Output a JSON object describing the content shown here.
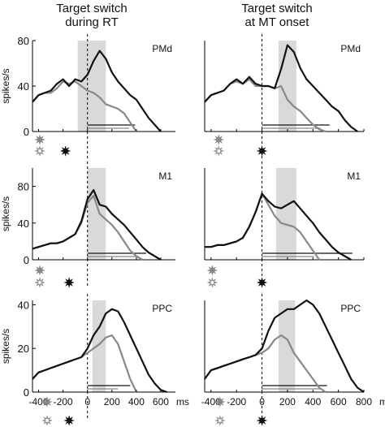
{
  "columns": [
    {
      "title_line1": "Target switch",
      "title_line2": "during RT"
    },
    {
      "title_line1": "Target switch",
      "title_line2": "at MT onset"
    }
  ],
  "colors": {
    "initial_target": "#888888",
    "switched_target": "#111111",
    "window": "#d9d9d9"
  },
  "chart_data": [
    {
      "type": "line",
      "region": "PMd",
      "condition": "during RT",
      "ylabel": "spikes/s",
      "ylim": [
        0,
        80
      ],
      "yticks": [
        0,
        40,
        80
      ],
      "xlim": [
        -450,
        850
      ],
      "window": [
        -80,
        150
      ],
      "series": [
        {
          "color": "#888888",
          "x": [
            -450,
            -400,
            -350,
            -300,
            -250,
            -200,
            -150,
            -100,
            -50,
            0,
            50,
            100,
            150,
            200,
            250,
            300,
            350,
            400
          ],
          "y": [
            26,
            32,
            34,
            34,
            38,
            44,
            42,
            44,
            40,
            36,
            34,
            30,
            24,
            22,
            20,
            16,
            8,
            0
          ]
        },
        {
          "color": "#111111",
          "x": [
            -450,
            -400,
            -350,
            -300,
            -250,
            -200,
            -150,
            -100,
            -50,
            0,
            50,
            100,
            150,
            200,
            250,
            300,
            350,
            400,
            450,
            500,
            550,
            600
          ],
          "y": [
            26,
            32,
            34,
            36,
            42,
            46,
            40,
            46,
            44,
            50,
            62,
            71,
            64,
            52,
            44,
            38,
            32,
            28,
            20,
            12,
            6,
            0
          ]
        }
      ],
      "bars": [
        {
          "x1": 0,
          "x2": 340,
          "color": "#888888"
        },
        {
          "x1": 0,
          "x2": 390,
          "color": "#111111"
        }
      ],
      "markers": [
        {
          "x": -390,
          "row": 0,
          "style": "solid-gray"
        },
        {
          "x": -390,
          "row": 1,
          "style": "open-gray"
        },
        {
          "x": -180,
          "row": 1,
          "style": "solid-black"
        }
      ]
    },
    {
      "type": "line",
      "region": "PMd",
      "condition": "at MT onset",
      "ylabel": "",
      "ylim": [
        0,
        80
      ],
      "yticks": [],
      "xlim": [
        -450,
        850
      ],
      "window": [
        130,
        270
      ],
      "series": [
        {
          "color": "#888888",
          "x": [
            -450,
            -400,
            -350,
            -300,
            -250,
            -200,
            -150,
            -100,
            -50,
            0,
            50,
            100,
            150,
            200,
            250,
            300,
            350,
            400,
            450,
            500
          ],
          "y": [
            26,
            32,
            34,
            36,
            42,
            44,
            42,
            46,
            40,
            40,
            40,
            38,
            40,
            28,
            22,
            18,
            12,
            6,
            2,
            0
          ]
        },
        {
          "color": "#111111",
          "x": [
            -450,
            -400,
            -350,
            -300,
            -250,
            -200,
            -150,
            -100,
            -50,
            0,
            50,
            100,
            150,
            200,
            250,
            300,
            350,
            400,
            450,
            500,
            550,
            600,
            650,
            700,
            750
          ],
          "y": [
            26,
            32,
            34,
            36,
            42,
            46,
            42,
            48,
            42,
            40,
            40,
            38,
            55,
            76,
            70,
            56,
            46,
            40,
            34,
            28,
            22,
            18,
            10,
            4,
            0
          ]
        }
      ],
      "bars": [
        {
          "x1": 0,
          "x2": 460,
          "color": "#888888"
        },
        {
          "x1": 0,
          "x2": 530,
          "color": "#111111"
        }
      ],
      "markers": [
        {
          "x": -340,
          "row": 0,
          "style": "solid-gray"
        },
        {
          "x": -340,
          "row": 1,
          "style": "open-gray"
        },
        {
          "x": 0,
          "row": 1,
          "style": "solid-black"
        }
      ]
    },
    {
      "type": "line",
      "region": "M1",
      "condition": "during RT",
      "ylabel": "spikes/s",
      "ylim": [
        0,
        100
      ],
      "yticks": [
        0,
        40,
        80
      ],
      "xlim": [
        -450,
        850
      ],
      "window": [
        0,
        150
      ],
      "series": [
        {
          "color": "#888888",
          "x": [
            -450,
            -400,
            -350,
            -300,
            -250,
            -200,
            -150,
            -100,
            -50,
            0,
            50,
            100,
            150,
            200,
            250,
            300,
            350,
            400,
            450
          ],
          "y": [
            12,
            14,
            16,
            18,
            18,
            20,
            24,
            28,
            40,
            62,
            70,
            50,
            44,
            38,
            30,
            20,
            10,
            4,
            0
          ]
        },
        {
          "color": "#111111",
          "x": [
            -450,
            -400,
            -350,
            -300,
            -250,
            -200,
            -150,
            -100,
            -50,
            0,
            50,
            100,
            150,
            200,
            250,
            300,
            350,
            400,
            450,
            500,
            550,
            600
          ],
          "y": [
            12,
            14,
            16,
            18,
            18,
            20,
            24,
            28,
            42,
            66,
            76,
            60,
            58,
            50,
            44,
            38,
            30,
            22,
            14,
            8,
            4,
            0
          ]
        }
      ],
      "bars": [
        {
          "x1": 0,
          "x2": 400,
          "color": "#888888"
        },
        {
          "x1": 0,
          "x2": 480,
          "color": "#111111"
        }
      ],
      "markers": [
        {
          "x": -390,
          "row": 0,
          "style": "solid-gray"
        },
        {
          "x": -390,
          "row": 1,
          "style": "open-gray"
        },
        {
          "x": -150,
          "row": 1,
          "style": "solid-black"
        }
      ]
    },
    {
      "type": "line",
      "region": "M1",
      "condition": "at MT onset",
      "ylabel": "",
      "ylim": [
        0,
        100
      ],
      "yticks": [],
      "xlim": [
        -450,
        850
      ],
      "window": [
        110,
        270
      ],
      "series": [
        {
          "color": "#888888",
          "x": [
            -450,
            -400,
            -350,
            -300,
            -250,
            -200,
            -150,
            -100,
            -50,
            0,
            50,
            100,
            150,
            200,
            250,
            300,
            350,
            400,
            450
          ],
          "y": [
            14,
            14,
            16,
            16,
            18,
            20,
            24,
            36,
            52,
            72,
            60,
            48,
            40,
            38,
            36,
            30,
            20,
            10,
            0
          ]
        },
        {
          "color": "#111111",
          "x": [
            -450,
            -400,
            -350,
            -300,
            -250,
            -200,
            -150,
            -100,
            -50,
            0,
            50,
            100,
            150,
            200,
            250,
            300,
            350,
            400,
            450,
            500,
            550,
            600,
            650,
            700
          ],
          "y": [
            14,
            14,
            16,
            16,
            18,
            20,
            24,
            36,
            52,
            72,
            64,
            58,
            56,
            60,
            64,
            56,
            48,
            40,
            30,
            22,
            14,
            8,
            4,
            0
          ]
        }
      ],
      "bars": [
        {
          "x1": 0,
          "x2": 410,
          "color": "#888888"
        },
        {
          "x1": 0,
          "x2": 710,
          "color": "#111111"
        }
      ],
      "markers": [
        {
          "x": -390,
          "row": 0,
          "style": "solid-gray"
        },
        {
          "x": -390,
          "row": 1,
          "style": "open-gray"
        },
        {
          "x": 0,
          "row": 1,
          "style": "solid-black"
        }
      ]
    },
    {
      "type": "line",
      "region": "PPC",
      "condition": "during RT",
      "ylabel": "spikes/s",
      "ylim": [
        0,
        42
      ],
      "yticks": [
        0,
        20,
        40
      ],
      "xlim": [
        -450,
        850
      ],
      "window": [
        40,
        150
      ],
      "series": [
        {
          "color": "#888888",
          "x": [
            -450,
            -400,
            -350,
            -300,
            -250,
            -200,
            -150,
            -100,
            -50,
            0,
            50,
            100,
            150,
            200,
            250,
            300,
            350,
            400
          ],
          "y": [
            6,
            9,
            10,
            11,
            12,
            13,
            14,
            15,
            16,
            18,
            20,
            22,
            25,
            26,
            22,
            14,
            6,
            0
          ]
        },
        {
          "color": "#111111",
          "x": [
            -450,
            -400,
            -350,
            -300,
            -250,
            -200,
            -150,
            -100,
            -50,
            0,
            50,
            100,
            150,
            200,
            250,
            300,
            350,
            400,
            450,
            500,
            550,
            600,
            650
          ],
          "y": [
            6,
            9,
            10,
            11,
            12,
            13,
            14,
            15,
            16,
            20,
            26,
            30,
            36,
            38,
            37,
            32,
            26,
            20,
            14,
            8,
            4,
            1,
            0
          ]
        }
      ],
      "bars": [
        {
          "x1": 0,
          "x2": 250,
          "color": "#888888"
        },
        {
          "x1": 0,
          "x2": 350,
          "color": "#111111"
        }
      ],
      "markers": [
        {
          "x": -330,
          "row": 0,
          "style": "solid-gray"
        },
        {
          "x": -330,
          "row": 1,
          "style": "open-gray"
        },
        {
          "x": -150,
          "row": 1,
          "style": "solid-black"
        }
      ]
    },
    {
      "type": "line",
      "region": "PPC",
      "condition": "at MT onset",
      "ylabel": "",
      "ylim": [
        0,
        42
      ],
      "yticks": [],
      "xlim": [
        -450,
        850
      ],
      "window": [
        130,
        260
      ],
      "series": [
        {
          "color": "#888888",
          "x": [
            -450,
            -400,
            -350,
            -300,
            -250,
            -200,
            -150,
            -100,
            -50,
            0,
            50,
            100,
            150,
            200,
            250,
            300,
            350,
            400,
            450,
            500
          ],
          "y": [
            6,
            10,
            11,
            12,
            13,
            14,
            15,
            16,
            17,
            18,
            20,
            24,
            26,
            24,
            18,
            14,
            10,
            6,
            2,
            0
          ]
        },
        {
          "color": "#111111",
          "x": [
            -450,
            -400,
            -350,
            -300,
            -250,
            -200,
            -150,
            -100,
            -50,
            0,
            50,
            100,
            150,
            200,
            250,
            300,
            350,
            400,
            450,
            500,
            550,
            600,
            650,
            700,
            750,
            800
          ],
          "y": [
            6,
            10,
            11,
            12,
            13,
            14,
            15,
            16,
            17,
            20,
            28,
            34,
            36,
            38,
            38,
            40,
            42,
            40,
            36,
            30,
            24,
            18,
            12,
            6,
            2,
            0
          ]
        }
      ],
      "bars": [
        {
          "x1": 0,
          "x2": 460,
          "color": "#888888"
        },
        {
          "x1": 0,
          "x2": 510,
          "color": "#111111"
        }
      ],
      "markers": [
        {
          "x": -330,
          "row": 0,
          "style": "solid-gray"
        },
        {
          "x": -330,
          "row": 1,
          "style": "open-gray"
        },
        {
          "x": 0,
          "row": 1,
          "style": "solid-black"
        }
      ]
    }
  ],
  "x_ticks_left": {
    "values": [
      -400,
      -200,
      0,
      200,
      400,
      600
    ],
    "labels": [
      "-400",
      "-200",
      "0",
      "200",
      "400",
      "600"
    ]
  },
  "x_ticks_right": {
    "values": [
      -400,
      -200,
      0,
      200,
      400,
      600,
      800
    ],
    "labels": [
      "-400",
      "-200",
      "0",
      "200",
      "400",
      "600",
      "800"
    ]
  },
  "x_unit": "ms"
}
